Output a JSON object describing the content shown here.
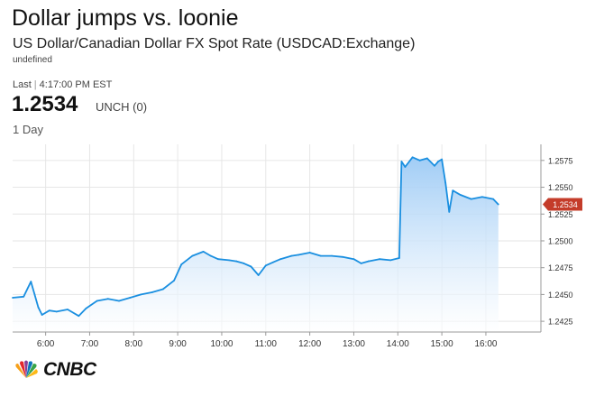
{
  "header": {
    "title": "Dollar jumps vs. loonie",
    "subtitle": "US Dollar/Canadian Dollar FX Spot Rate (USDCAD:Exchange)",
    "meta": "undefined"
  },
  "quote": {
    "last_label": "Last",
    "time": "4:17:00 PM EST",
    "price": "1.2534",
    "change": "UNCH (0)",
    "period": "1 Day",
    "badge": "1.2534"
  },
  "brand": {
    "logo_text": "CNBC",
    "icon": "peacock-icon"
  },
  "colors": {
    "line": "#1a8fe0",
    "fill": "#cfe6fb",
    "badge": "#c43c2a",
    "grid": "#e6e6e6"
  },
  "chart_data": {
    "type": "area",
    "x_ticks": [
      "6:00",
      "7:00",
      "8:00",
      "9:00",
      "10:00",
      "11:00",
      "12:00",
      "13:00",
      "14:00",
      "15:00",
      "16:00"
    ],
    "y_ticks": [
      "1.2575",
      "1.2550",
      "1.2525",
      "1.2500",
      "1.2475",
      "1.2450",
      "1.2425"
    ],
    "xlim": [
      "5:15",
      "17:15"
    ],
    "ylim": [
      1.2415,
      1.259
    ],
    "grid": true,
    "series": [
      {
        "x": [
          "5:15",
          "5:30",
          "5:40",
          "5:45",
          "5:50",
          "5:55",
          "6:05",
          "6:15",
          "6:30",
          "6:45",
          "6:55",
          "7:10",
          "7:25",
          "7:40",
          "7:55",
          "8:10",
          "8:25",
          "8:40",
          "8:55",
          "9:05",
          "9:20",
          "9:35",
          "9:45",
          "9:55",
          "10:10",
          "10:20",
          "10:30",
          "10:40",
          "10:50",
          "11:00",
          "11:10",
          "11:20",
          "11:35",
          "11:45",
          "12:00",
          "12:15",
          "12:30",
          "12:45",
          "13:00",
          "13:10",
          "13:20",
          "13:35",
          "13:50",
          "14:02",
          "14:05",
          "14:10",
          "14:20",
          "14:30",
          "14:40",
          "14:50",
          "14:55",
          "15:00",
          "15:05",
          "15:10",
          "15:15",
          "15:25",
          "15:40",
          "15:55",
          "16:10",
          "16:17"
        ],
        "values": [
          1.2447,
          1.2448,
          1.2462,
          1.245,
          1.2438,
          1.2431,
          1.2435,
          1.2434,
          1.2436,
          1.243,
          1.2437,
          1.2444,
          1.2446,
          1.2444,
          1.2447,
          1.245,
          1.2452,
          1.2455,
          1.2463,
          1.2478,
          1.2486,
          1.249,
          1.2486,
          1.2483,
          1.2482,
          1.2481,
          1.2479,
          1.2476,
          1.2468,
          1.2477,
          1.248,
          1.2483,
          1.2486,
          1.2487,
          1.2489,
          1.2486,
          1.2486,
          1.2485,
          1.2483,
          1.2479,
          1.2481,
          1.2483,
          1.2482,
          1.2484,
          1.2574,
          1.2569,
          1.2578,
          1.2575,
          1.2577,
          1.257,
          1.2574,
          1.2576,
          1.2554,
          1.2527,
          1.2547,
          1.2543,
          1.2539,
          1.2541,
          1.2539,
          1.2534
        ]
      }
    ],
    "last_value": 1.2534
  }
}
